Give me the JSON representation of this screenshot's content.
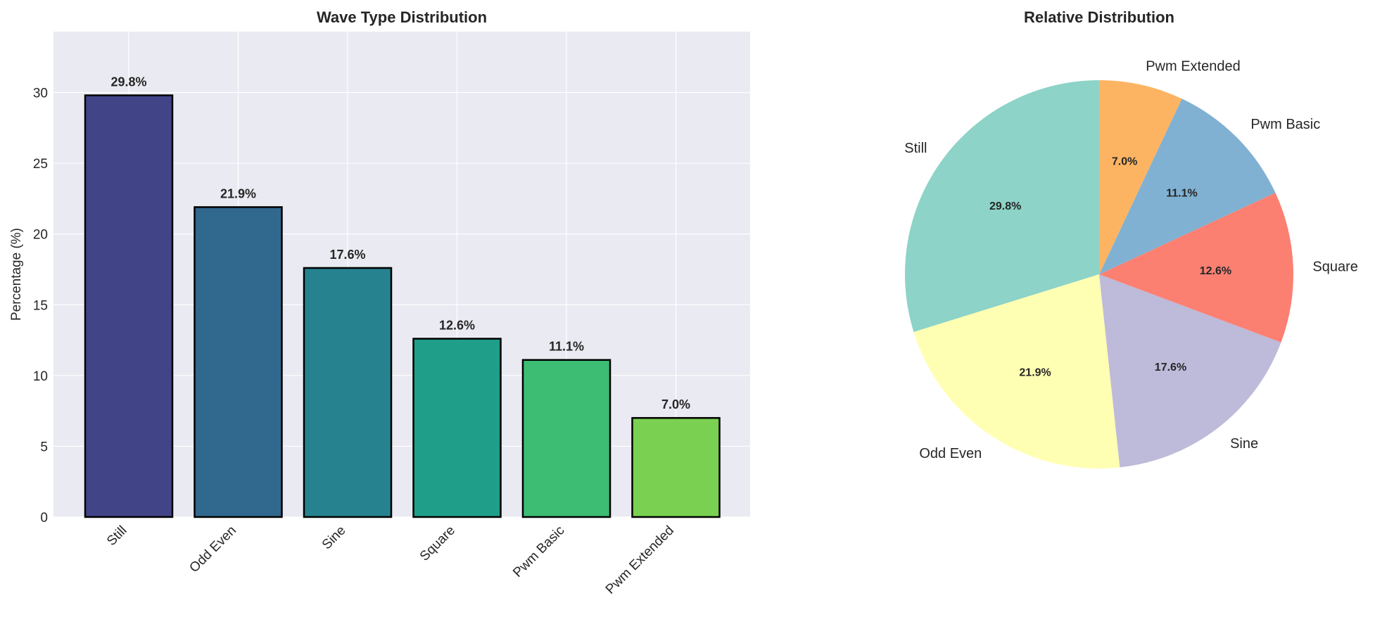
{
  "chart_data": [
    {
      "type": "bar",
      "title": "Wave Type Distribution",
      "xlabel": "",
      "ylabel": "Percentage (%)",
      "categories": [
        "Still",
        "Odd Even",
        "Sine",
        "Square",
        "Pwm Basic",
        "Pwm Extended"
      ],
      "values": [
        29.8,
        21.9,
        17.6,
        12.6,
        11.1,
        7.0
      ],
      "value_labels": [
        "29.8%",
        "21.9%",
        "17.6%",
        "12.6%",
        "11.1%",
        "7.0%"
      ],
      "colors": [
        "#414487",
        "#31688e",
        "#26828e",
        "#1f9e89",
        "#3dbc74",
        "#7ad151"
      ],
      "ylim": [
        0,
        34.3
      ],
      "yticks": [
        0,
        5,
        10,
        15,
        20,
        25,
        30
      ],
      "grid": true,
      "bar_edge_color": "#000000"
    },
    {
      "type": "pie",
      "title": "Relative Distribution",
      "labels": [
        "Still",
        "Odd Even",
        "Sine",
        "Square",
        "Pwm Basic",
        "Pwm Extended"
      ],
      "values": [
        29.8,
        21.9,
        17.6,
        12.6,
        11.1,
        7.0
      ],
      "pct_labels": [
        "29.8%",
        "21.9%",
        "17.6%",
        "12.6%",
        "11.1%",
        "7.0%"
      ],
      "colors": [
        "#8dd3c7",
        "#ffffb3",
        "#bebada",
        "#fb8072",
        "#80b1d3",
        "#fdb462"
      ],
      "start_angle_deg": 90,
      "direction": "counterclockwise"
    }
  ]
}
